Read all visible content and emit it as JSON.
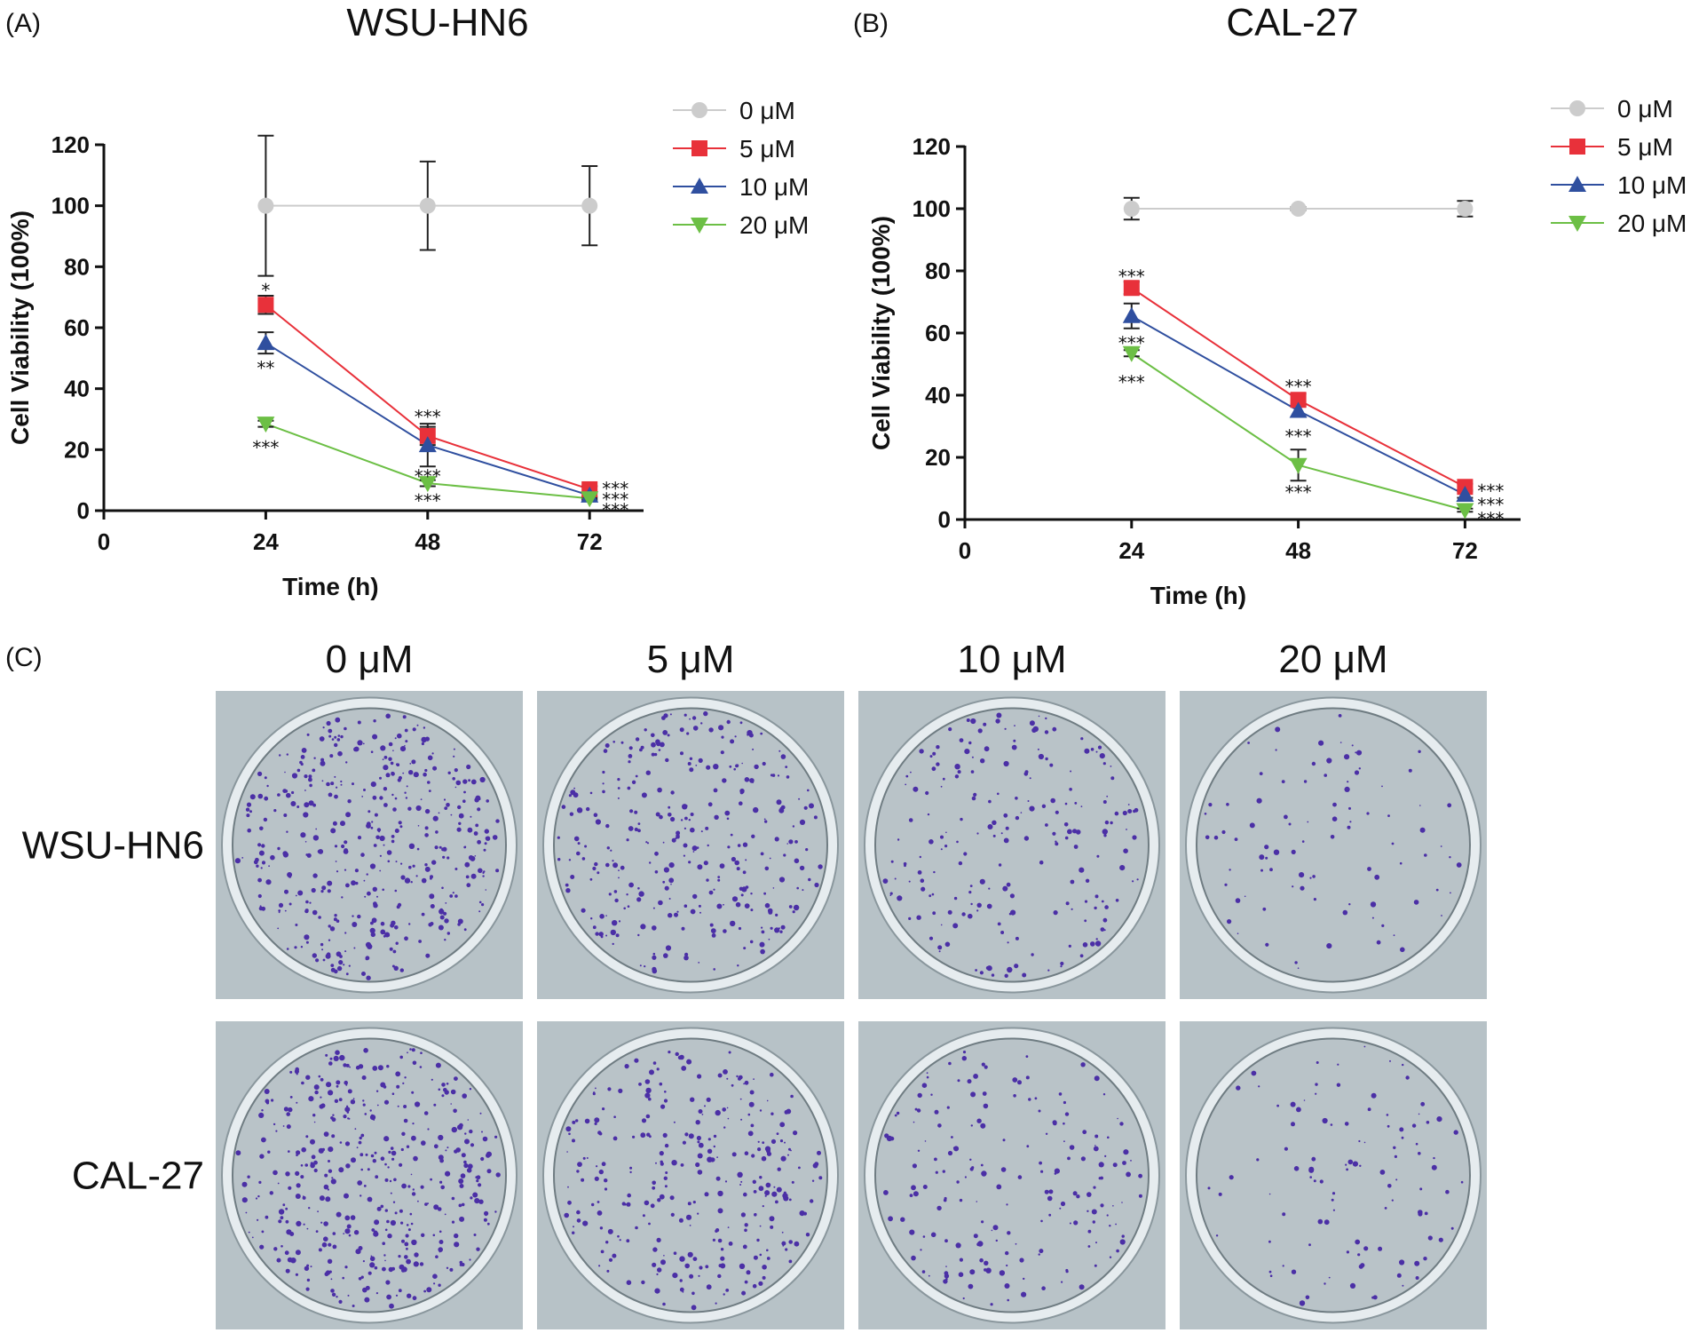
{
  "colors": {
    "0 μM": "#cccccc",
    "5 μM": "#e8313a",
    "10 μM": "#2f4f9f",
    "20 μM": "#6cbf45",
    "error_bar": "#222222",
    "plate_bg": "#b7c2c7",
    "colony": "#4b2fa6"
  },
  "panels": [
    {
      "label": "(A)",
      "title": "WSU-HN6"
    },
    {
      "label": "(B)",
      "title": "CAL-27"
    },
    {
      "label": "(C)"
    }
  ],
  "chart_data": [
    {
      "type": "line",
      "title": "WSU-HN6",
      "xlabel": "Time (h)",
      "ylabel": "Cell Viability (100%)",
      "xlim": [
        0,
        72
      ],
      "ylim": [
        0,
        120
      ],
      "xticks": [
        "0",
        "24",
        "48",
        "72"
      ],
      "yticks": [
        "0",
        "20",
        "40",
        "60",
        "80",
        "100",
        "120"
      ],
      "legend_position": "top-right",
      "legend": [
        "0 μM",
        "5 μM",
        "10 μM",
        "20 μM"
      ],
      "x": [
        24,
        48,
        72
      ],
      "series": [
        {
          "name": "0 μM",
          "marker": "circle",
          "values": [
            100,
            100,
            100
          ],
          "errors": [
            23,
            14.5,
            13
          ]
        },
        {
          "name": "5 μM",
          "marker": "square",
          "values": [
            67.5,
            24.5,
            7
          ],
          "errors": [
            3,
            3,
            1
          ]
        },
        {
          "name": "10 μM",
          "marker": "triangle-up",
          "values": [
            55,
            21.5,
            5
          ],
          "errors": [
            3.5,
            7,
            1
          ]
        },
        {
          "name": "20 μM",
          "marker": "triangle-down",
          "values": [
            28.5,
            9,
            4
          ],
          "errors": [
            1,
            1,
            0.5
          ]
        }
      ],
      "annotations": [
        {
          "x": 24,
          "y": 72.5,
          "text": "*"
        },
        {
          "x": 24,
          "y": 47,
          "text": "**"
        },
        {
          "x": 24,
          "y": 21,
          "text": "***"
        },
        {
          "x": 48,
          "y": 31,
          "text": "***"
        },
        {
          "x": 48,
          "y": 11.5,
          "text": "***"
        },
        {
          "x": 48,
          "y": 3.5,
          "text": "***"
        },
        {
          "x": 72,
          "y": 7.5,
          "text": "***",
          "side": "right"
        },
        {
          "x": 72,
          "y": 4,
          "text": "***",
          "side": "right"
        },
        {
          "x": 72,
          "y": 0.5,
          "text": "***",
          "side": "right"
        }
      ]
    },
    {
      "type": "line",
      "title": "CAL-27",
      "xlabel": "Time (h)",
      "ylabel": "Cell Viability (100%)",
      "xlim": [
        0,
        72
      ],
      "ylim": [
        0,
        120
      ],
      "xticks": [
        "0",
        "24",
        "48",
        "72"
      ],
      "yticks": [
        "0",
        "20",
        "40",
        "60",
        "80",
        "100",
        "120"
      ],
      "legend_position": "top-right",
      "legend": [
        "0 μM",
        "5 μM",
        "10 μM",
        "20 μM"
      ],
      "x": [
        24,
        48,
        72
      ],
      "series": [
        {
          "name": "0 μM",
          "marker": "circle",
          "values": [
            100,
            100,
            100
          ],
          "errors": [
            3.5,
            0.5,
            2.5
          ]
        },
        {
          "name": "5 μM",
          "marker": "square",
          "values": [
            74.5,
            38.5,
            10.5
          ],
          "errors": [
            2,
            2,
            1
          ]
        },
        {
          "name": "10 μM",
          "marker": "triangle-up",
          "values": [
            65.5,
            35,
            8
          ],
          "errors": [
            4,
            2,
            1
          ]
        },
        {
          "name": "20 μM",
          "marker": "triangle-down",
          "values": [
            53.5,
            17.5,
            3
          ],
          "errors": [
            1,
            5,
            0.5
          ]
        }
      ],
      "annotations": [
        {
          "x": 24,
          "y": 78.5,
          "text": "***"
        },
        {
          "x": 24,
          "y": 57,
          "text": "***"
        },
        {
          "x": 24,
          "y": 44.5,
          "text": "***"
        },
        {
          "x": 48,
          "y": 43,
          "text": "***"
        },
        {
          "x": 48,
          "y": 27,
          "text": "***"
        },
        {
          "x": 48,
          "y": 9,
          "text": "***"
        },
        {
          "x": 72,
          "y": 9.5,
          "text": "***",
          "side": "right"
        },
        {
          "x": 72,
          "y": 5,
          "text": "***",
          "side": "right"
        },
        {
          "x": 72,
          "y": 0.5,
          "text": "***",
          "side": "right"
        }
      ]
    }
  ],
  "colony_assay": {
    "columns": [
      "0 μM",
      "5 μM",
      "10 μM",
      "20 μM"
    ],
    "rows": [
      "WSU-HN6",
      "CAL-27"
    ],
    "relative_colony_density": [
      [
        1.0,
        0.75,
        0.5,
        0.22
      ],
      [
        1.0,
        0.7,
        0.45,
        0.25
      ]
    ]
  }
}
